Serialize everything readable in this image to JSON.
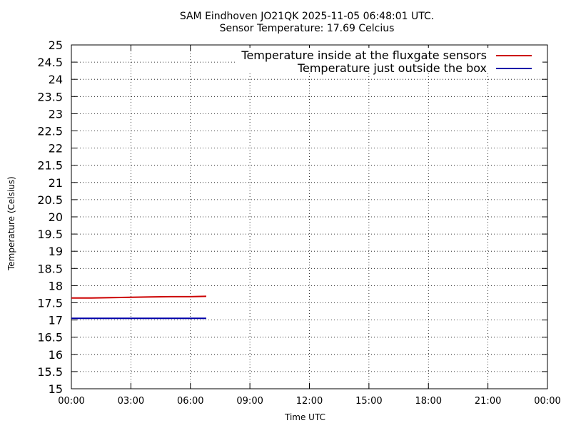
{
  "chart_data": {
    "type": "line",
    "title": "SAM Eindhoven JO21QK 2025-11-05 06:48:01 UTC.",
    "subtitle": "Sensor Temperature: 17.69 Celcius",
    "xlabel": "Time UTC",
    "ylabel": "Temperature (Celsius)",
    "xlim": [
      0,
      24
    ],
    "ylim": [
      15,
      25
    ],
    "xticks": [
      0,
      3,
      6,
      9,
      12,
      15,
      18,
      21,
      24
    ],
    "xtick_labels": [
      "00:00",
      "03:00",
      "06:00",
      "09:00",
      "12:00",
      "15:00",
      "18:00",
      "21:00",
      "00:00"
    ],
    "yticks": [
      15,
      15.5,
      16,
      16.5,
      17,
      17.5,
      18,
      18.5,
      19,
      19.5,
      20,
      20.5,
      21,
      21.5,
      22,
      22.5,
      23,
      23.5,
      24,
      24.5,
      25
    ],
    "ytick_labels": [
      "15",
      "15.5",
      "16",
      "16.5",
      "17",
      "17.5",
      "18",
      "18.5",
      "19",
      "19.5",
      "20",
      "20.5",
      "21",
      "21.5",
      "22",
      "22.5",
      "23",
      "23.5",
      "24",
      "24.5",
      "25"
    ],
    "grid": true,
    "legend_position": "top-right",
    "series": [
      {
        "name": "Temperature inside at the fluxgate sensors",
        "color": "#cc0000",
        "x": [
          0,
          1,
          2,
          3,
          4,
          5,
          6,
          6.8
        ],
        "y": [
          17.64,
          17.64,
          17.65,
          17.66,
          17.67,
          17.68,
          17.68,
          17.69
        ]
      },
      {
        "name": "Temperature just outside the box",
        "color": "#0000aa",
        "x": [
          0,
          1,
          2,
          3,
          4,
          5,
          6,
          6.8
        ],
        "y": [
          17.05,
          17.05,
          17.05,
          17.05,
          17.05,
          17.05,
          17.05,
          17.05
        ]
      }
    ]
  }
}
